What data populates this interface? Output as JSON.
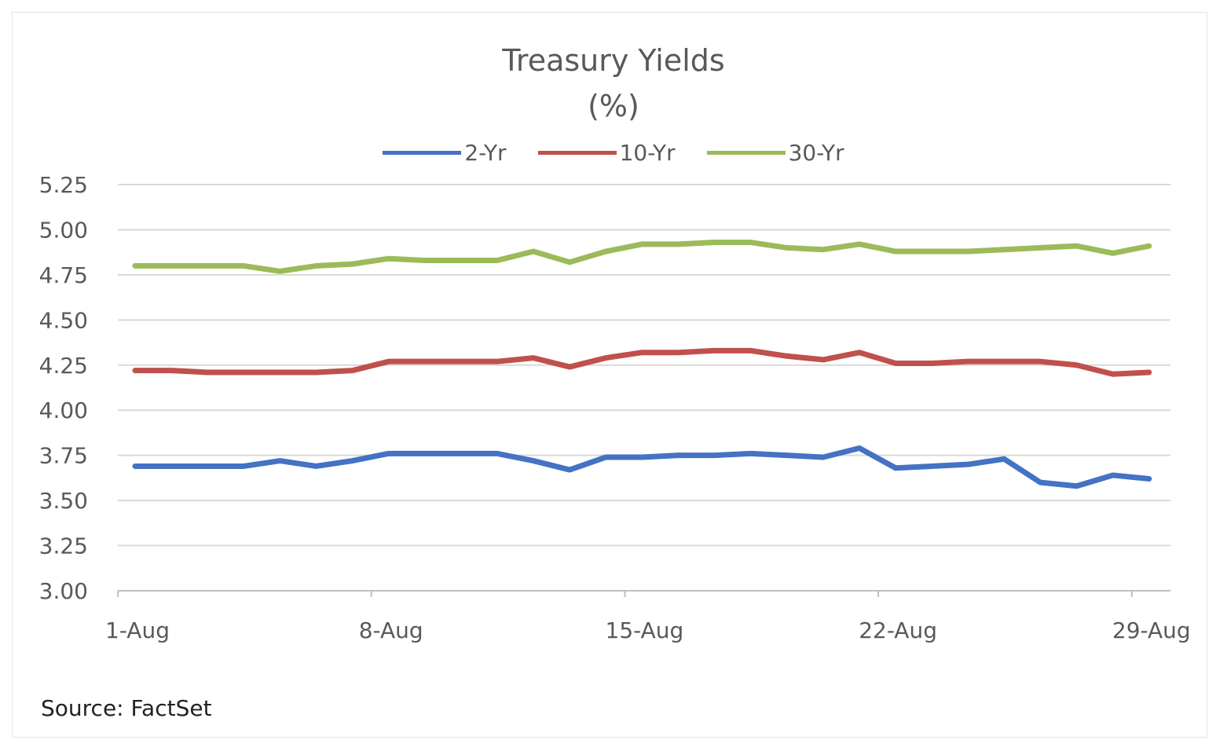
{
  "chart_data": {
    "type": "line",
    "title": "Treasury Yields",
    "subtitle": "(%)",
    "source": "Source: FactSet",
    "x": [
      "1-Aug",
      "2-Aug",
      "3-Aug",
      "4-Aug",
      "5-Aug",
      "6-Aug",
      "7-Aug",
      "8-Aug",
      "9-Aug",
      "10-Aug",
      "11-Aug",
      "12-Aug",
      "13-Aug",
      "14-Aug",
      "15-Aug",
      "16-Aug",
      "17-Aug",
      "18-Aug",
      "19-Aug",
      "20-Aug",
      "21-Aug",
      "22-Aug",
      "23-Aug",
      "24-Aug",
      "25-Aug",
      "26-Aug",
      "27-Aug",
      "28-Aug",
      "29-Aug"
    ],
    "x_tick_labels": [
      "1-Aug",
      "8-Aug",
      "15-Aug",
      "22-Aug",
      "29-Aug"
    ],
    "y_tick_labels": [
      "3.00",
      "3.25",
      "3.50",
      "3.75",
      "4.00",
      "4.25",
      "4.50",
      "4.75",
      "5.00",
      "5.25"
    ],
    "ylim": [
      3.0,
      5.25
    ],
    "grid": true,
    "legend_position": "top",
    "series": [
      {
        "name": "2-Yr",
        "color": "#4472c4",
        "values": [
          3.69,
          3.69,
          3.69,
          3.69,
          3.72,
          3.69,
          3.72,
          3.76,
          3.76,
          3.76,
          3.76,
          3.72,
          3.67,
          3.74,
          3.74,
          3.75,
          3.75,
          3.76,
          3.75,
          3.74,
          3.79,
          3.68,
          3.69,
          3.7,
          3.73,
          3.6,
          3.58,
          3.64,
          3.62
        ]
      },
      {
        "name": "10-Yr",
        "color": "#c0504d",
        "values": [
          4.22,
          4.22,
          4.21,
          4.21,
          4.21,
          4.21,
          4.22,
          4.27,
          4.27,
          4.27,
          4.27,
          4.29,
          4.24,
          4.29,
          4.32,
          4.32,
          4.33,
          4.33,
          4.3,
          4.28,
          4.32,
          4.26,
          4.26,
          4.27,
          4.27,
          4.27,
          4.25,
          4.2,
          4.21
        ]
      },
      {
        "name": "30-Yr",
        "color": "#9bbb59",
        "values": [
          4.8,
          4.8,
          4.8,
          4.8,
          4.77,
          4.8,
          4.81,
          4.84,
          4.83,
          4.83,
          4.83,
          4.88,
          4.82,
          4.88,
          4.92,
          4.92,
          4.93,
          4.93,
          4.9,
          4.89,
          4.92,
          4.88,
          4.88,
          4.88,
          4.89,
          4.9,
          4.91,
          4.87,
          4.91
        ]
      }
    ]
  }
}
